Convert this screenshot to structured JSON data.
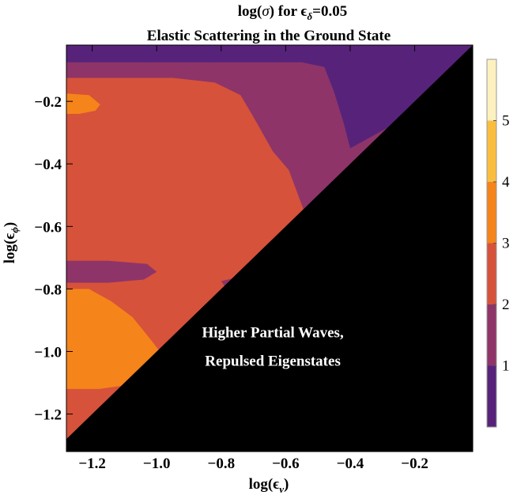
{
  "chart_data": {
    "type": "heatmap",
    "title_line1_prefix": "log(",
    "title_line1_sigma": "σ",
    "title_line1_mid": ") for ",
    "title_line1_eps": "ϵ",
    "title_line1_sub": "δ",
    "title_line1_suffix": "=0.05",
    "title_line2": "Elastic Scattering in the Ground State",
    "xlabel_prefix": "log(",
    "xlabel_eps": "ϵ",
    "xlabel_sub": "ν",
    "xlabel_suffix": ")",
    "ylabel_prefix": "log(",
    "ylabel_eps": "ϵ",
    "ylabel_sub": "ϕ",
    "ylabel_suffix": ")",
    "xlim": [
      -1.28,
      -0.02
    ],
    "ylim": [
      -1.32,
      -0.02
    ],
    "x_ticks": [
      {
        "value": -1.2,
        "label": "−1.2"
      },
      {
        "value": -1.0,
        "label": "−1.0"
      },
      {
        "value": -0.8,
        "label": "−0.8"
      },
      {
        "value": -0.6,
        "label": "−0.6"
      },
      {
        "value": -0.4,
        "label": "−0.4"
      },
      {
        "value": -0.2,
        "label": "−0.2"
      }
    ],
    "y_ticks": [
      {
        "value": -0.2,
        "label": "−0.2"
      },
      {
        "value": -0.4,
        "label": "−0.4"
      },
      {
        "value": -0.6,
        "label": "−0.6"
      },
      {
        "value": -0.8,
        "label": "−0.8"
      },
      {
        "value": -1.0,
        "label": "−1.0"
      },
      {
        "value": -1.2,
        "label": "−1.2"
      }
    ],
    "color_levels": [
      {
        "min": 0,
        "max": 1,
        "color": "#57237a"
      },
      {
        "min": 1,
        "max": 2,
        "color": "#8e3468"
      },
      {
        "min": 2,
        "max": 3,
        "color": "#d6523a"
      },
      {
        "min": 3,
        "max": 4,
        "color": "#f5841b"
      },
      {
        "min": 4,
        "max": 5,
        "color": "#fbbd3e"
      },
      {
        "min": 5,
        "max": 6,
        "color": "#fdf1bf"
      }
    ],
    "colorbar_ticks": [
      {
        "value": 1,
        "label": "1"
      },
      {
        "value": 2,
        "label": "2"
      },
      {
        "value": 3,
        "label": "3"
      },
      {
        "value": 4,
        "label": "4"
      },
      {
        "value": 5,
        "label": "5"
      }
    ],
    "colorbar_range": [
      0,
      6
    ],
    "regions": [
      {
        "level": 0,
        "points": [
          [
            -1.28,
            -0.02
          ],
          [
            -0.02,
            -0.02
          ],
          [
            -1.28,
            -1.28
          ]
        ]
      },
      {
        "level": 1,
        "points": [
          [
            -1.28,
            -0.075
          ],
          [
            -0.55,
            -0.075
          ],
          [
            -0.48,
            -0.09
          ],
          [
            -0.45,
            -0.17
          ],
          [
            -0.42,
            -0.27
          ],
          [
            -0.4,
            -0.35
          ],
          [
            -0.285,
            -0.285
          ],
          [
            -1.28,
            -1.28
          ]
        ]
      },
      {
        "level": 2,
        "points": [
          [
            -1.28,
            -0.125
          ],
          [
            -0.95,
            -0.125
          ],
          [
            -0.82,
            -0.14
          ],
          [
            -0.74,
            -0.18
          ],
          [
            -0.7,
            -0.25
          ],
          [
            -0.64,
            -0.36
          ],
          [
            -0.59,
            -0.42
          ],
          [
            -0.545,
            -0.545
          ],
          [
            -1.28,
            -1.28
          ]
        ]
      },
      {
        "level": 1,
        "points": [
          [
            -1.28,
            -0.71
          ],
          [
            -1.15,
            -0.71
          ],
          [
            -1.03,
            -0.72
          ],
          [
            -1.0,
            -0.745
          ],
          [
            -1.04,
            -0.77
          ],
          [
            -1.15,
            -0.78
          ],
          [
            -1.28,
            -0.78
          ]
        ]
      },
      {
        "level": 1,
        "points": [
          [
            -0.79,
            -0.79
          ],
          [
            -0.8,
            -0.775
          ],
          [
            -0.76,
            -0.765
          ],
          [
            -0.7,
            -0.765
          ],
          [
            -0.765,
            -0.765
          ]
        ]
      },
      {
        "level": 3,
        "points": [
          [
            -1.28,
            -0.8
          ],
          [
            -1.21,
            -0.8
          ],
          [
            -1.14,
            -0.84
          ],
          [
            -1.075,
            -0.89
          ],
          [
            -1.02,
            -0.96
          ],
          [
            -0.99,
            -1.0
          ],
          [
            -1.07,
            -1.07
          ],
          [
            -1.11,
            -1.11
          ],
          [
            -1.18,
            -1.12
          ],
          [
            -1.28,
            -1.12
          ]
        ]
      },
      {
        "level": 3,
        "points": [
          [
            -1.28,
            -0.175
          ],
          [
            -1.21,
            -0.18
          ],
          [
            -1.175,
            -0.21
          ],
          [
            -1.19,
            -0.23
          ],
          [
            -1.24,
            -0.24
          ],
          [
            -1.28,
            -0.24
          ]
        ]
      }
    ],
    "excluded_region": {
      "label_line1": "Higher Partial Waves,",
      "label_line2": "Repulsed Eigenstates",
      "label_x": -0.64,
      "label_y1": -0.955,
      "label_y2": -1.045,
      "color": "#000000",
      "points": [
        [
          -1.28,
          -1.28
        ],
        [
          -0.02,
          -0.02
        ],
        [
          -0.02,
          -1.32
        ],
        [
          -1.28,
          -1.32
        ]
      ]
    }
  }
}
